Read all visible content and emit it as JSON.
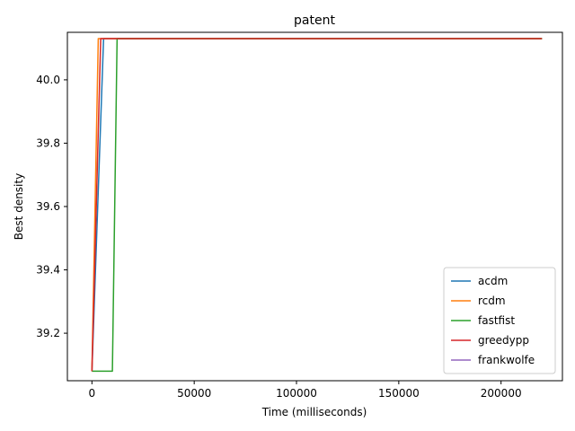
{
  "chart_data": {
    "type": "line",
    "title": "patent",
    "xlabel": "Time (milliseconds)",
    "ylabel": "Best density",
    "xlim": [
      -12000,
      230000
    ],
    "ylim": [
      39.05,
      40.15
    ],
    "xticks": [
      0,
      50000,
      100000,
      150000,
      200000
    ],
    "xtick_labels": [
      "0",
      "50000",
      "100000",
      "150000",
      "200000"
    ],
    "yticks": [
      39.2,
      39.4,
      39.6,
      39.8,
      40.0
    ],
    "ytick_labels": [
      "39.2",
      "39.4",
      "39.6",
      "39.8",
      "40.0"
    ],
    "grid": false,
    "legend_position": "bottom-right",
    "series": [
      {
        "name": "acdm",
        "color": "#1f77b4",
        "x": [
          0,
          5700,
          220000
        ],
        "y": [
          39.08,
          40.13,
          40.13
        ]
      },
      {
        "name": "rcdm",
        "color": "#ff7f0e",
        "x": [
          0,
          3100,
          220000
        ],
        "y": [
          39.08,
          40.13,
          40.13
        ]
      },
      {
        "name": "fastfist",
        "color": "#2ca02c",
        "x": [
          0,
          10000,
          12300,
          220000
        ],
        "y": [
          39.08,
          39.08,
          40.13,
          40.13
        ]
      },
      {
        "name": "greedypp",
        "color": "#d62728",
        "x": [
          0,
          4300,
          220000
        ],
        "y": [
          39.08,
          40.13,
          40.13
        ]
      },
      {
        "name": "frankwolfe",
        "color": "#9467bd",
        "x": [],
        "y": []
      }
    ]
  }
}
